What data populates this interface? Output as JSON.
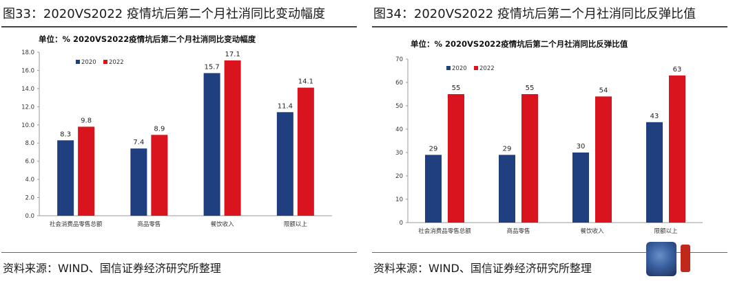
{
  "panels": [
    {
      "figure_title": "图33：2020VS2022 疫情坑后第二个月社消同比变动幅度",
      "source": "资料来源：WIND、国信证券经济研究所整理"
    },
    {
      "figure_title": "图34：2020VS2022 疫情坑后第二个月社消同比反弹比值",
      "source": "资料来源：WIND、国信证券经济研究所整理"
    }
  ],
  "colors": {
    "s2020": "#1f3f7f",
    "s2022": "#d9141e"
  },
  "chart_data": [
    {
      "type": "bar",
      "title": "单位：%   2020VS2022疫情坑后第二个月社消同比变动幅度",
      "categories": [
        "社会消费品零售总额",
        "商品零售",
        "餐饮收入",
        "限额以上"
      ],
      "series": [
        {
          "name": "2020",
          "values": [
            8.3,
            7.4,
            15.7,
            11.4
          ],
          "labels": [
            "8.3",
            "7.4",
            "15.7",
            "11.4"
          ]
        },
        {
          "name": "2022",
          "values": [
            9.8,
            8.9,
            17.1,
            14.1
          ],
          "labels": [
            "9.8",
            "8.9",
            "17.1",
            "14.1"
          ]
        }
      ],
      "yticks": [
        "0.0",
        "2.0",
        "4.0",
        "6.0",
        "8.0",
        "10.0",
        "12.0",
        "14.0",
        "16.0",
        "18.0"
      ],
      "ylim": [
        0,
        18
      ],
      "xlabel": "",
      "ylabel": "",
      "legend": "top-left",
      "grid": false
    },
    {
      "type": "bar",
      "title": "单位：%   2020VS2022疫情坑后第二个月社消同比反弹比值",
      "categories": [
        "社会消费品零售总额",
        "商品零售",
        "餐饮收入",
        "限额以上"
      ],
      "series": [
        {
          "name": "2020",
          "values": [
            29,
            29,
            30,
            43
          ],
          "labels": [
            "29",
            "29",
            "30",
            "43"
          ]
        },
        {
          "name": "2022",
          "values": [
            55,
            55,
            54,
            63
          ],
          "labels": [
            "55",
            "55",
            "54",
            "63"
          ]
        }
      ],
      "yticks": [
        "0",
        "10",
        "20",
        "30",
        "40",
        "50",
        "60",
        "70"
      ],
      "ylim": [
        0,
        70
      ],
      "xlabel": "",
      "ylabel": "",
      "legend": "top-left",
      "grid": false
    }
  ]
}
